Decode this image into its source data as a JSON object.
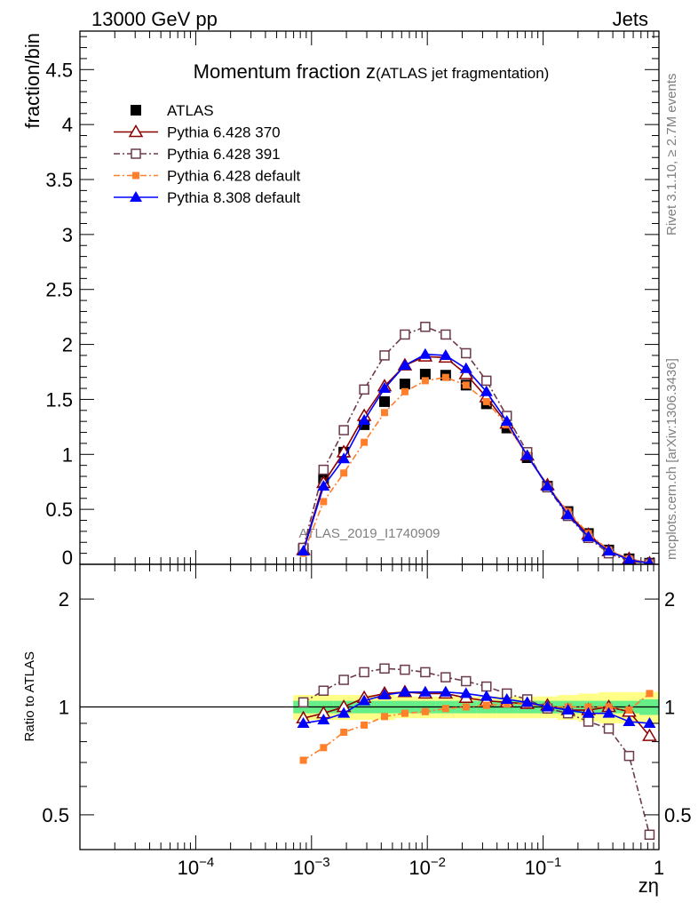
{
  "header": {
    "left": "13000 GeV pp",
    "right": "Jets"
  },
  "side_labels": {
    "rivet": "Rivet 3.1.10, ≥ 2.7M events",
    "mcplots": "mcplots.cern.ch [arXiv:1306.3436]"
  },
  "watermark": "ATLAS_2019_I1740909",
  "chart_data": [
    {
      "type": "scatter",
      "title_main": "Momentum fraction z",
      "title_sub": "(ATLAS jet fragmentation)",
      "xlabel": "zη",
      "ylabel": "fraction/bin",
      "xscale": "log",
      "xlim": [
        1e-05,
        1
      ],
      "ylim": [
        0,
        4.85
      ],
      "x_tick_labels": [
        "10^-4",
        "10^-3",
        "10^-2",
        "10^-1",
        "1"
      ],
      "y_tick_labels": [
        "0",
        "0.5",
        "1",
        "1.5",
        "2",
        "2.5",
        "3",
        "3.5",
        "4",
        "4.5"
      ],
      "legend_position": "top-left",
      "x": [
        0.00085,
        0.00127,
        0.0019,
        0.00285,
        0.00427,
        0.0064,
        0.0096,
        0.0144,
        0.0216,
        0.0324,
        0.0486,
        0.0729,
        0.109,
        0.164,
        0.246,
        0.369,
        0.553,
        0.83
      ],
      "series": [
        {
          "name": "ATLAS",
          "color": "#000000",
          "marker": "filled-square",
          "line": "none",
          "values": [
            0.14,
            0.78,
            1.02,
            1.27,
            1.48,
            1.64,
            1.73,
            1.72,
            1.63,
            1.46,
            1.24,
            0.97,
            0.71,
            0.48,
            0.28,
            0.13,
            0.05,
            0.01
          ]
        },
        {
          "name": "Pythia 6.428 370",
          "color": "#8b0000",
          "marker": "open-triangle",
          "line": "solid",
          "values": [
            0.13,
            0.74,
            1.02,
            1.35,
            1.62,
            1.81,
            1.89,
            1.88,
            1.73,
            1.52,
            1.28,
            0.99,
            0.72,
            0.46,
            0.27,
            0.12,
            0.05,
            0.01
          ]
        },
        {
          "name": "Pythia 6.428 391",
          "color": "#6b3a4b",
          "marker": "open-square",
          "line": "dashdot",
          "values": [
            0.15,
            0.86,
            1.22,
            1.59,
            1.9,
            2.09,
            2.16,
            2.09,
            1.92,
            1.67,
            1.35,
            1.02,
            0.7,
            0.44,
            0.24,
            0.1,
            0.03,
            0.005
          ]
        },
        {
          "name": "Pythia 6.428 default",
          "color": "#ff7f2a",
          "marker": "filled-small-square",
          "line": "dashdot",
          "values": [
            0.1,
            0.57,
            0.83,
            1.11,
            1.38,
            1.57,
            1.67,
            1.7,
            1.63,
            1.48,
            1.27,
            0.99,
            0.71,
            0.48,
            0.28,
            0.13,
            0.05,
            0.01
          ]
        },
        {
          "name": "Pythia 8.308 default",
          "color": "#0000ff",
          "marker": "filled-triangle",
          "line": "solid",
          "values": [
            0.12,
            0.71,
            0.96,
            1.31,
            1.6,
            1.81,
            1.91,
            1.9,
            1.78,
            1.57,
            1.3,
            0.99,
            0.71,
            0.45,
            0.25,
            0.12,
            0.04,
            0.009
          ]
        }
      ]
    },
    {
      "type": "scatter",
      "ylabel": "Ratio to ATLAS",
      "xlabel": "zη",
      "xscale": "log",
      "yscale": "log",
      "xlim": [
        1e-05,
        1
      ],
      "ylim": [
        0.4,
        2.5
      ],
      "y_tick_labels": [
        "0.5",
        "1",
        "2"
      ],
      "reference_line": 1,
      "uncertainty_band": {
        "inner_color": "#66ee88",
        "outer_color": "#ffff88",
        "inner": [
          0.04,
          0.04,
          0.04,
          0.04,
          0.04,
          0.04,
          0.04,
          0.04,
          0.04,
          0.04,
          0.04,
          0.04,
          0.04,
          0.04,
          0.04,
          0.04,
          0.04,
          0.05
        ],
        "outer": [
          0.08,
          0.08,
          0.08,
          0.08,
          0.08,
          0.07,
          0.07,
          0.07,
          0.07,
          0.07,
          0.07,
          0.07,
          0.07,
          0.08,
          0.09,
          0.1,
          0.1,
          0.1
        ]
      },
      "series": [
        {
          "name": "Pythia 6.428 370",
          "color": "#8b0000",
          "marker": "open-triangle",
          "line": "solid",
          "values": [
            0.93,
            0.96,
            1.0,
            1.06,
            1.09,
            1.1,
            1.09,
            1.09,
            1.06,
            1.04,
            1.03,
            1.02,
            1.01,
            0.98,
            0.98,
            1.0,
            0.97,
            0.83
          ]
        },
        {
          "name": "Pythia 6.428 391",
          "color": "#6b3a4b",
          "marker": "open-square",
          "line": "dashdot",
          "values": [
            1.03,
            1.11,
            1.19,
            1.25,
            1.28,
            1.27,
            1.25,
            1.21,
            1.18,
            1.14,
            1.09,
            1.05,
            0.99,
            0.96,
            0.91,
            0.87,
            0.73,
            0.44
          ]
        },
        {
          "name": "Pythia 6.428 default",
          "color": "#ff7f2a",
          "marker": "filled-small-square",
          "line": "dashdot",
          "values": [
            0.71,
            0.77,
            0.85,
            0.89,
            0.94,
            0.96,
            0.97,
            0.99,
            1.0,
            1.01,
            1.02,
            1.02,
            1.0,
            1.0,
            1.0,
            1.0,
            0.98,
            1.09
          ]
        },
        {
          "name": "Pythia 8.308 default",
          "color": "#0000ff",
          "marker": "filled-triangle",
          "line": "solid",
          "values": [
            0.9,
            0.92,
            0.96,
            1.04,
            1.08,
            1.1,
            1.1,
            1.1,
            1.09,
            1.07,
            1.05,
            1.03,
            1.0,
            0.98,
            0.96,
            0.96,
            0.91,
            0.9
          ]
        }
      ]
    }
  ]
}
